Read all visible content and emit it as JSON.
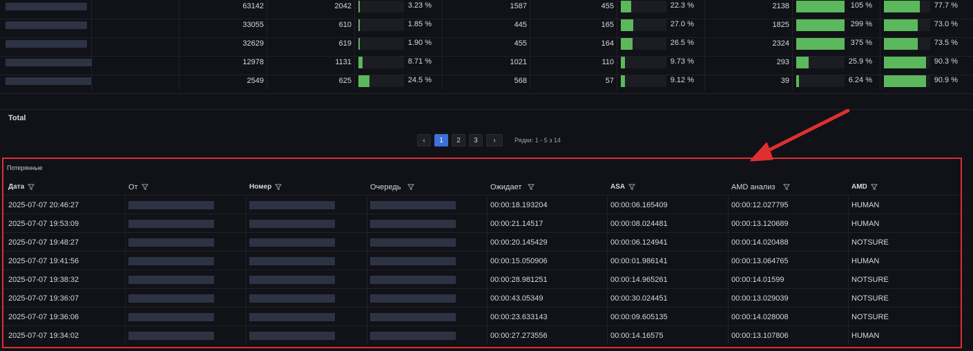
{
  "stats_table": {
    "rows": [
      {
        "c1": "63142",
        "c2": "2042",
        "g1": 3.23,
        "p1": "3.23 %",
        "c3": "1587",
        "c4": "455",
        "g2": 22.3,
        "p2": "22.3 %",
        "c5": "2138",
        "g3": 100,
        "p3": "105 %",
        "g4": 77.7,
        "p4": "77.7 %"
      },
      {
        "c1": "33055",
        "c2": "610",
        "g1": 1.85,
        "p1": "1.85 %",
        "c3": "445",
        "c4": "165",
        "g2": 27.0,
        "p2": "27.0 %",
        "c5": "1825",
        "g3": 100,
        "p3": "299 %",
        "g4": 73.0,
        "p4": "73.0 %"
      },
      {
        "c1": "32629",
        "c2": "619",
        "g1": 1.9,
        "p1": "1.90 %",
        "c3": "455",
        "c4": "164",
        "g2": 26.5,
        "p2": "26.5 %",
        "c5": "2324",
        "g3": 100,
        "p3": "375 %",
        "g4": 73.5,
        "p4": "73.5 %"
      },
      {
        "c1": "12978",
        "c2": "1131",
        "g1": 8.71,
        "p1": "8.71 %",
        "c3": "1021",
        "c4": "110",
        "g2": 9.73,
        "p2": "9.73 %",
        "c5": "293",
        "g3": 25.9,
        "p3": "25.9 %",
        "g4": 90.3,
        "p4": "90.3 %"
      },
      {
        "c1": "2549",
        "c2": "625",
        "g1": 24.5,
        "p1": "24.5 %",
        "c3": "568",
        "c4": "57",
        "g2": 9.12,
        "p2": "9.12 %",
        "c5": "39",
        "g3": 6.24,
        "p3": "6.24 %",
        "g4": 90.9,
        "p4": "90.9 %"
      }
    ],
    "total_label": "Total",
    "gauge_color": "#5cb85c"
  },
  "pagination": {
    "prev": "‹",
    "pages": [
      "1",
      "2",
      "3"
    ],
    "active_page": "1",
    "next": "›",
    "rows_info": "Рядки: 1 - 5 з 14"
  },
  "lost_panel": {
    "title": "Потерянные",
    "headers": [
      "Дата",
      "От",
      "Номер",
      "Очередь",
      "Ожидает",
      "ASA",
      "AMD анализ",
      "AMD"
    ],
    "rows": [
      {
        "date": "2025-07-07 20:46:27",
        "wait": "00:00:18.193204",
        "asa": "00:00:06.165409",
        "amd_analysis": "00:00:12.027795",
        "amd": "HUMAN"
      },
      {
        "date": "2025-07-07 19:53:09",
        "wait": "00:00:21.14517",
        "asa": "00:00:08.024481",
        "amd_analysis": "00:00:13.120689",
        "amd": "HUMAN"
      },
      {
        "date": "2025-07-07 19:48:27",
        "wait": "00:00:20.145429",
        "asa": "00:00:06.124941",
        "amd_analysis": "00:00:14.020488",
        "amd": "NOTSURE"
      },
      {
        "date": "2025-07-07 19:41:56",
        "wait": "00:00:15.050906",
        "asa": "00:00:01.986141",
        "amd_analysis": "00:00:13.064765",
        "amd": "HUMAN"
      },
      {
        "date": "2025-07-07 19:38:32",
        "wait": "00:00:28.981251",
        "asa": "00:00:14.965261",
        "amd_analysis": "00:00:14.01599",
        "amd": "NOTSURE"
      },
      {
        "date": "2025-07-07 19:36:07",
        "wait": "00:00:43.05349",
        "asa": "00:00:30.024451",
        "amd_analysis": "00:00:13.029039",
        "amd": "NOTSURE"
      },
      {
        "date": "2025-07-07 19:36:06",
        "wait": "00:00:23.633143",
        "asa": "00:00:09.605135",
        "amd_analysis": "00:00:14.028008",
        "amd": "NOTSURE"
      },
      {
        "date": "2025-07-07 19:34:02",
        "wait": "00:00:27.273556",
        "asa": "00:00:14.16575",
        "amd_analysis": "00:00:13.107806",
        "amd": "HUMAN"
      }
    ],
    "highlight_color": "#e02f2f",
    "filter_icon": "filter-icon"
  },
  "annotation": {
    "arrow_color": "#e02f2f",
    "icon": "arrow-icon"
  }
}
